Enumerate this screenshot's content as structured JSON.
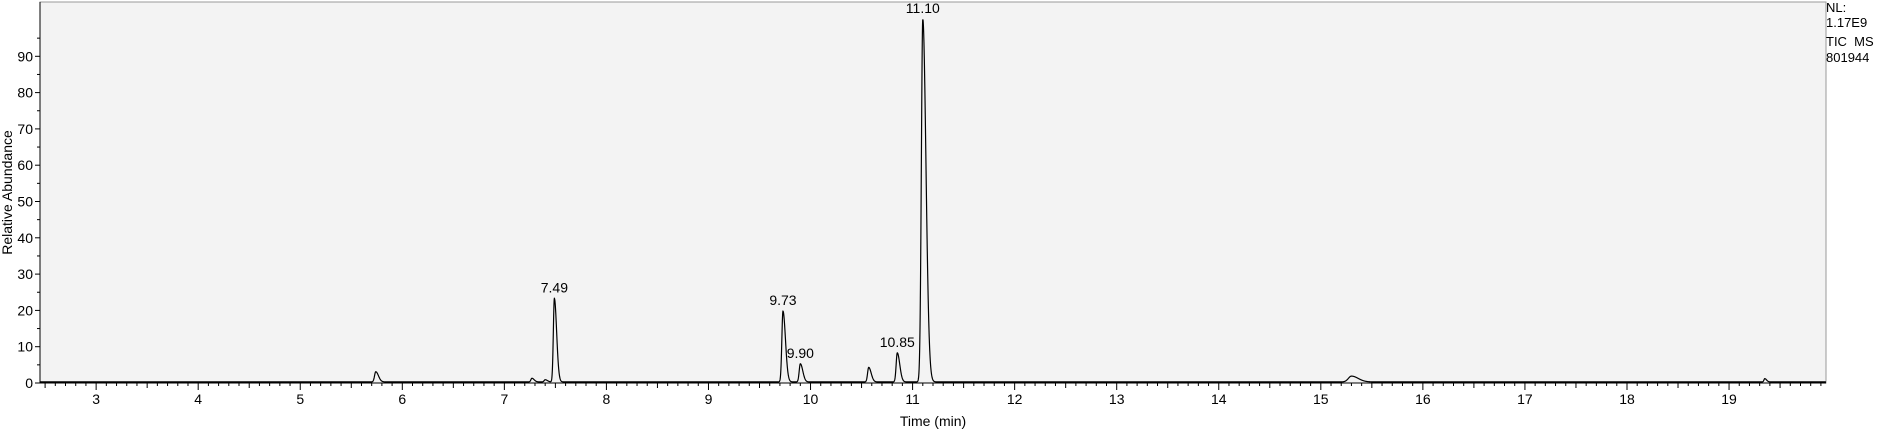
{
  "chart_data": {
    "type": "line",
    "title": "",
    "xlabel": "Time (min)",
    "ylabel": "Relative Abundance",
    "xlim": [
      2.45,
      19.95
    ],
    "ylim": [
      0,
      100
    ],
    "grid": false,
    "x_ticks": [
      3,
      4,
      5,
      6,
      7,
      8,
      9,
      10,
      11,
      12,
      13,
      14,
      15,
      16,
      17,
      18,
      19
    ],
    "x_tick_labels": [
      "3",
      "4",
      "5",
      "6",
      "7",
      "8",
      "9",
      "10",
      "11",
      "12",
      "13",
      "14",
      "15",
      "16",
      "17",
      "18",
      "19"
    ],
    "y_ticks": [
      0,
      10,
      20,
      30,
      40,
      50,
      60,
      70,
      80,
      90
    ],
    "y_tick_labels": [
      "0",
      "10",
      "20",
      "30",
      "40",
      "50",
      "60",
      "70",
      "80",
      "90"
    ],
    "series": [
      {
        "color": "#000000",
        "peaks": [
          {
            "rt": 5.74,
            "height": 2.8,
            "width": 0.012
          },
          {
            "rt": 7.27,
            "height": 1.0,
            "width": 0.01
          },
          {
            "rt": 7.4,
            "height": 0.6,
            "width": 0.01
          },
          {
            "rt": 7.49,
            "height": 23,
            "width": 0.01
          },
          {
            "rt": 9.73,
            "height": 19.5,
            "width": 0.011
          },
          {
            "rt": 9.9,
            "height": 5,
            "width": 0.011
          },
          {
            "rt": 10.57,
            "height": 4,
            "width": 0.011
          },
          {
            "rt": 10.85,
            "height": 8,
            "width": 0.011
          },
          {
            "rt": 11.1,
            "height": 100,
            "width": 0.014
          },
          {
            "rt": 15.3,
            "height": 1.6,
            "width": 0.03
          },
          {
            "rt": 19.35,
            "height": 0.9,
            "width": 0.008
          }
        ],
        "baseline": 0.3
      }
    ],
    "peak_labels": [
      {
        "x": 7.49,
        "y": 23,
        "text": "7.49"
      },
      {
        "x": 9.73,
        "y": 19.5,
        "text": "9.73"
      },
      {
        "x": 9.9,
        "y": 5,
        "text": "9.90"
      },
      {
        "x": 10.85,
        "y": 8,
        "text": "10.85"
      },
      {
        "x": 11.1,
        "y": 100,
        "text": "11.10"
      }
    ]
  },
  "info": {
    "nl_label": "NL:",
    "nl_value": "1.17E9",
    "trace": "TIC  MS",
    "file": "801944"
  },
  "colors": {
    "plot_bg": "#f3f3f3",
    "line": "#000000"
  }
}
